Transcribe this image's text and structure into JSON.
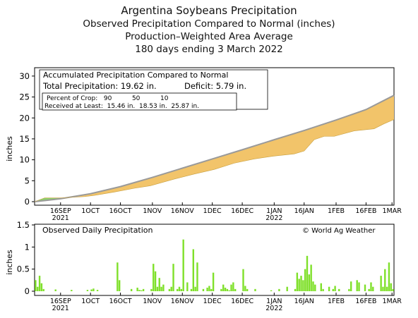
{
  "titles": {
    "line1": "Argentina Soybeans Precipitation",
    "line2": "Observed Precipitation Compared to Normal (inches)",
    "line3": "Production–Weighted Area Average",
    "line4": "180 days ending 3 March 2022"
  },
  "x_ticks": [
    "16SEP",
    "1OCT",
    "16OCT",
    "1NOV",
    "16NOV",
    "1DEC",
    "16DEC",
    "1JAN",
    "16JAN",
    "1FEB",
    "16FEB",
    "1MAR"
  ],
  "x_tick_days": [
    13,
    28,
    43,
    59,
    74,
    89,
    104,
    120,
    135,
    151,
    166,
    179
  ],
  "x_year_labels": [
    {
      "label": "2021",
      "day": 13
    },
    {
      "label": "2022",
      "day": 120
    }
  ],
  "top_panel": {
    "box_title": "Accumulated Precipitation Compared to Normal",
    "total_label": "Total Precipitation: 19.62 in.",
    "deficit_label": "Deficit: 5.79 in.",
    "crop_row1": "Percent of Crop:   90          50          10",
    "crop_row2": "Received at Least:  15.46 in.  18.53 in.  25.87 in.",
    "ylabel": "inches",
    "y_ticks": [
      "0",
      "5",
      "10",
      "15",
      "20",
      "25",
      "30"
    ]
  },
  "bottom_panel": {
    "box_title": "Observed Daily Precipitation",
    "credit": "© World Ag Weather",
    "ylabel": "inches",
    "y_ticks": [
      "0",
      "0.5",
      "1",
      "1.5"
    ]
  },
  "colors": {
    "normal_line": "#9a9a9a",
    "deficit_fill": "#f2c46a",
    "surplus_fill": "#8fd16a",
    "bars": "#7fe02a"
  },
  "chart_data": [
    {
      "type": "area",
      "title": "Accumulated Precipitation Compared to Normal",
      "ylabel": "inches",
      "ylim": [
        0,
        32
      ],
      "xlim": [
        0,
        180
      ],
      "series": [
        {
          "name": "normal",
          "x": [
            0,
            5,
            13,
            28,
            43,
            59,
            74,
            89,
            104,
            120,
            135,
            151,
            166,
            180
          ],
          "values": [
            0.0,
            0.25,
            0.7,
            1.9,
            3.6,
            5.8,
            8.0,
            10.2,
            12.4,
            14.8,
            17.0,
            19.5,
            22.0,
            25.4
          ]
        },
        {
          "name": "observed",
          "x": [
            0,
            5,
            13,
            25,
            30,
            40,
            50,
            58,
            70,
            80,
            90,
            100,
            110,
            120,
            130,
            135,
            140,
            145,
            150,
            160,
            170,
            175,
            180
          ],
          "values": [
            0.0,
            0.9,
            0.9,
            1.2,
            1.5,
            2.3,
            3.2,
            3.8,
            5.4,
            6.6,
            7.7,
            9.2,
            10.2,
            10.9,
            11.4,
            12.1,
            14.8,
            15.6,
            15.6,
            16.9,
            17.4,
            18.6,
            19.62
          ]
        }
      ]
    },
    {
      "type": "bar",
      "title": "Observed Daily Precipitation",
      "ylabel": "inches",
      "ylim": [
        0,
        1.5
      ],
      "x": [
        0,
        1,
        2,
        3,
        4,
        10,
        18,
        26,
        28,
        29,
        31,
        41,
        42,
        48,
        51,
        52,
        53,
        54,
        58,
        59,
        60,
        61,
        62,
        63,
        64,
        67,
        68,
        69,
        71,
        72,
        73,
        74,
        76,
        78,
        79,
        80,
        81,
        84,
        86,
        87,
        88,
        89,
        93,
        94,
        95,
        96,
        97,
        98,
        99,
        100,
        104,
        105,
        106,
        110,
        118,
        122,
        126,
        130,
        131,
        132,
        133,
        134,
        135,
        136,
        137,
        138,
        139,
        140,
        143,
        144,
        147,
        149,
        150,
        152,
        157,
        158,
        161,
        162,
        165,
        167,
        168,
        169,
        173,
        174,
        175,
        176,
        177,
        178,
        179
      ],
      "values": [
        0.25,
        0.1,
        0.35,
        0.18,
        0.05,
        0.04,
        0.03,
        0.03,
        0.04,
        0.06,
        0.03,
        0.65,
        0.25,
        0.05,
        0.08,
        0.03,
        0.02,
        0.05,
        0.05,
        0.62,
        0.45,
        0.1,
        0.3,
        0.1,
        0.15,
        0.05,
        0.1,
        0.62,
        0.05,
        0.1,
        0.05,
        1.17,
        0.2,
        0.05,
        0.95,
        0.1,
        0.65,
        0.05,
        0.08,
        0.12,
        0.05,
        0.42,
        0.05,
        0.15,
        0.08,
        0.05,
        0.02,
        0.15,
        0.2,
        0.05,
        0.5,
        0.12,
        0.05,
        0.05,
        0.02,
        0.05,
        0.1,
        0.05,
        0.42,
        0.28,
        0.35,
        0.25,
        0.5,
        0.8,
        0.38,
        0.6,
        0.22,
        0.15,
        0.18,
        0.05,
        0.1,
        0.05,
        0.12,
        0.05,
        0.05,
        0.22,
        0.25,
        0.2,
        0.15,
        0.05,
        0.2,
        0.1,
        0.35,
        0.1,
        0.5,
        0.1,
        0.65,
        0.18,
        0.05
      ]
    }
  ]
}
